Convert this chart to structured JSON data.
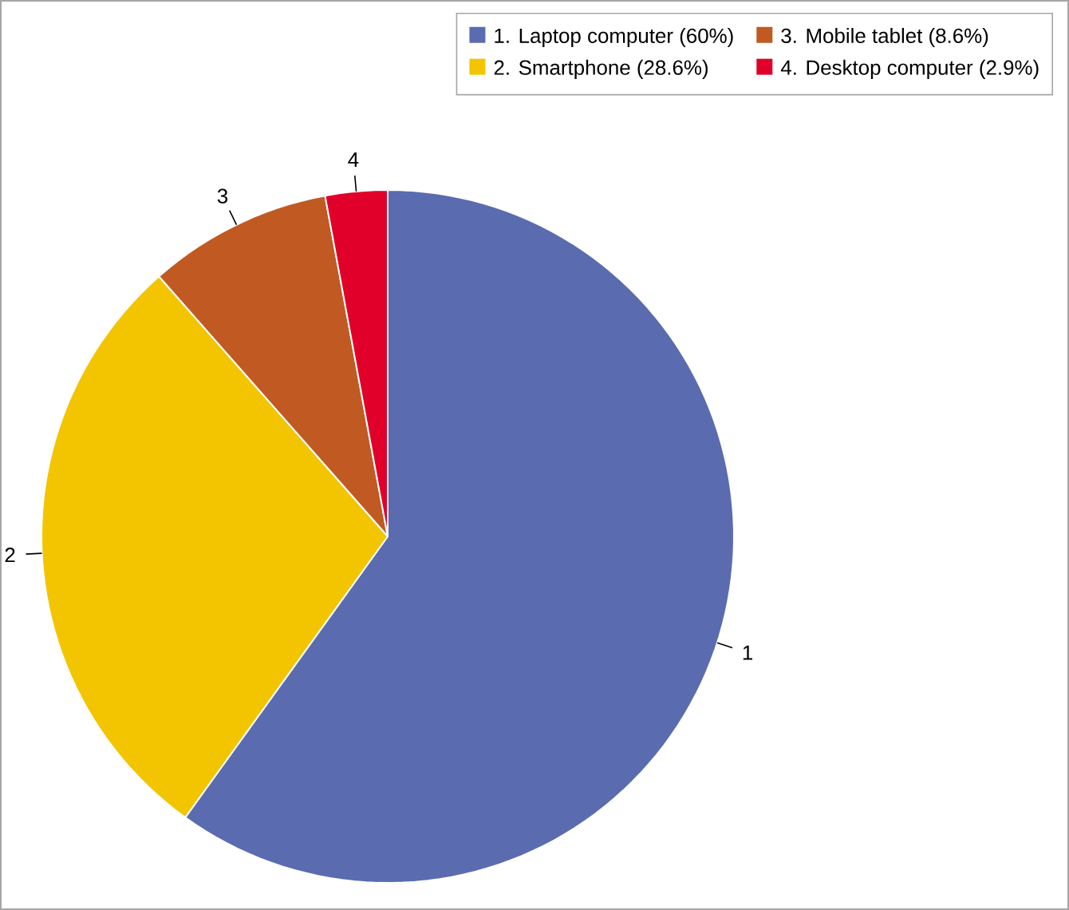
{
  "chart_data": {
    "type": "pie",
    "categories": [
      "1. Laptop computer (60%)",
      "2. Smartphone (28.6%)",
      "3. Mobile tablet (8.6%)",
      "4. Desktop computer (2.9%)"
    ],
    "values": [
      60,
      28.6,
      8.6,
      2.9
    ],
    "colors": [
      "#5a6bb0",
      "#f2c500",
      "#c05a22",
      "#e0002a"
    ],
    "annotations": [
      "1",
      "2",
      "3",
      "4"
    ],
    "legend": "top right"
  }
}
